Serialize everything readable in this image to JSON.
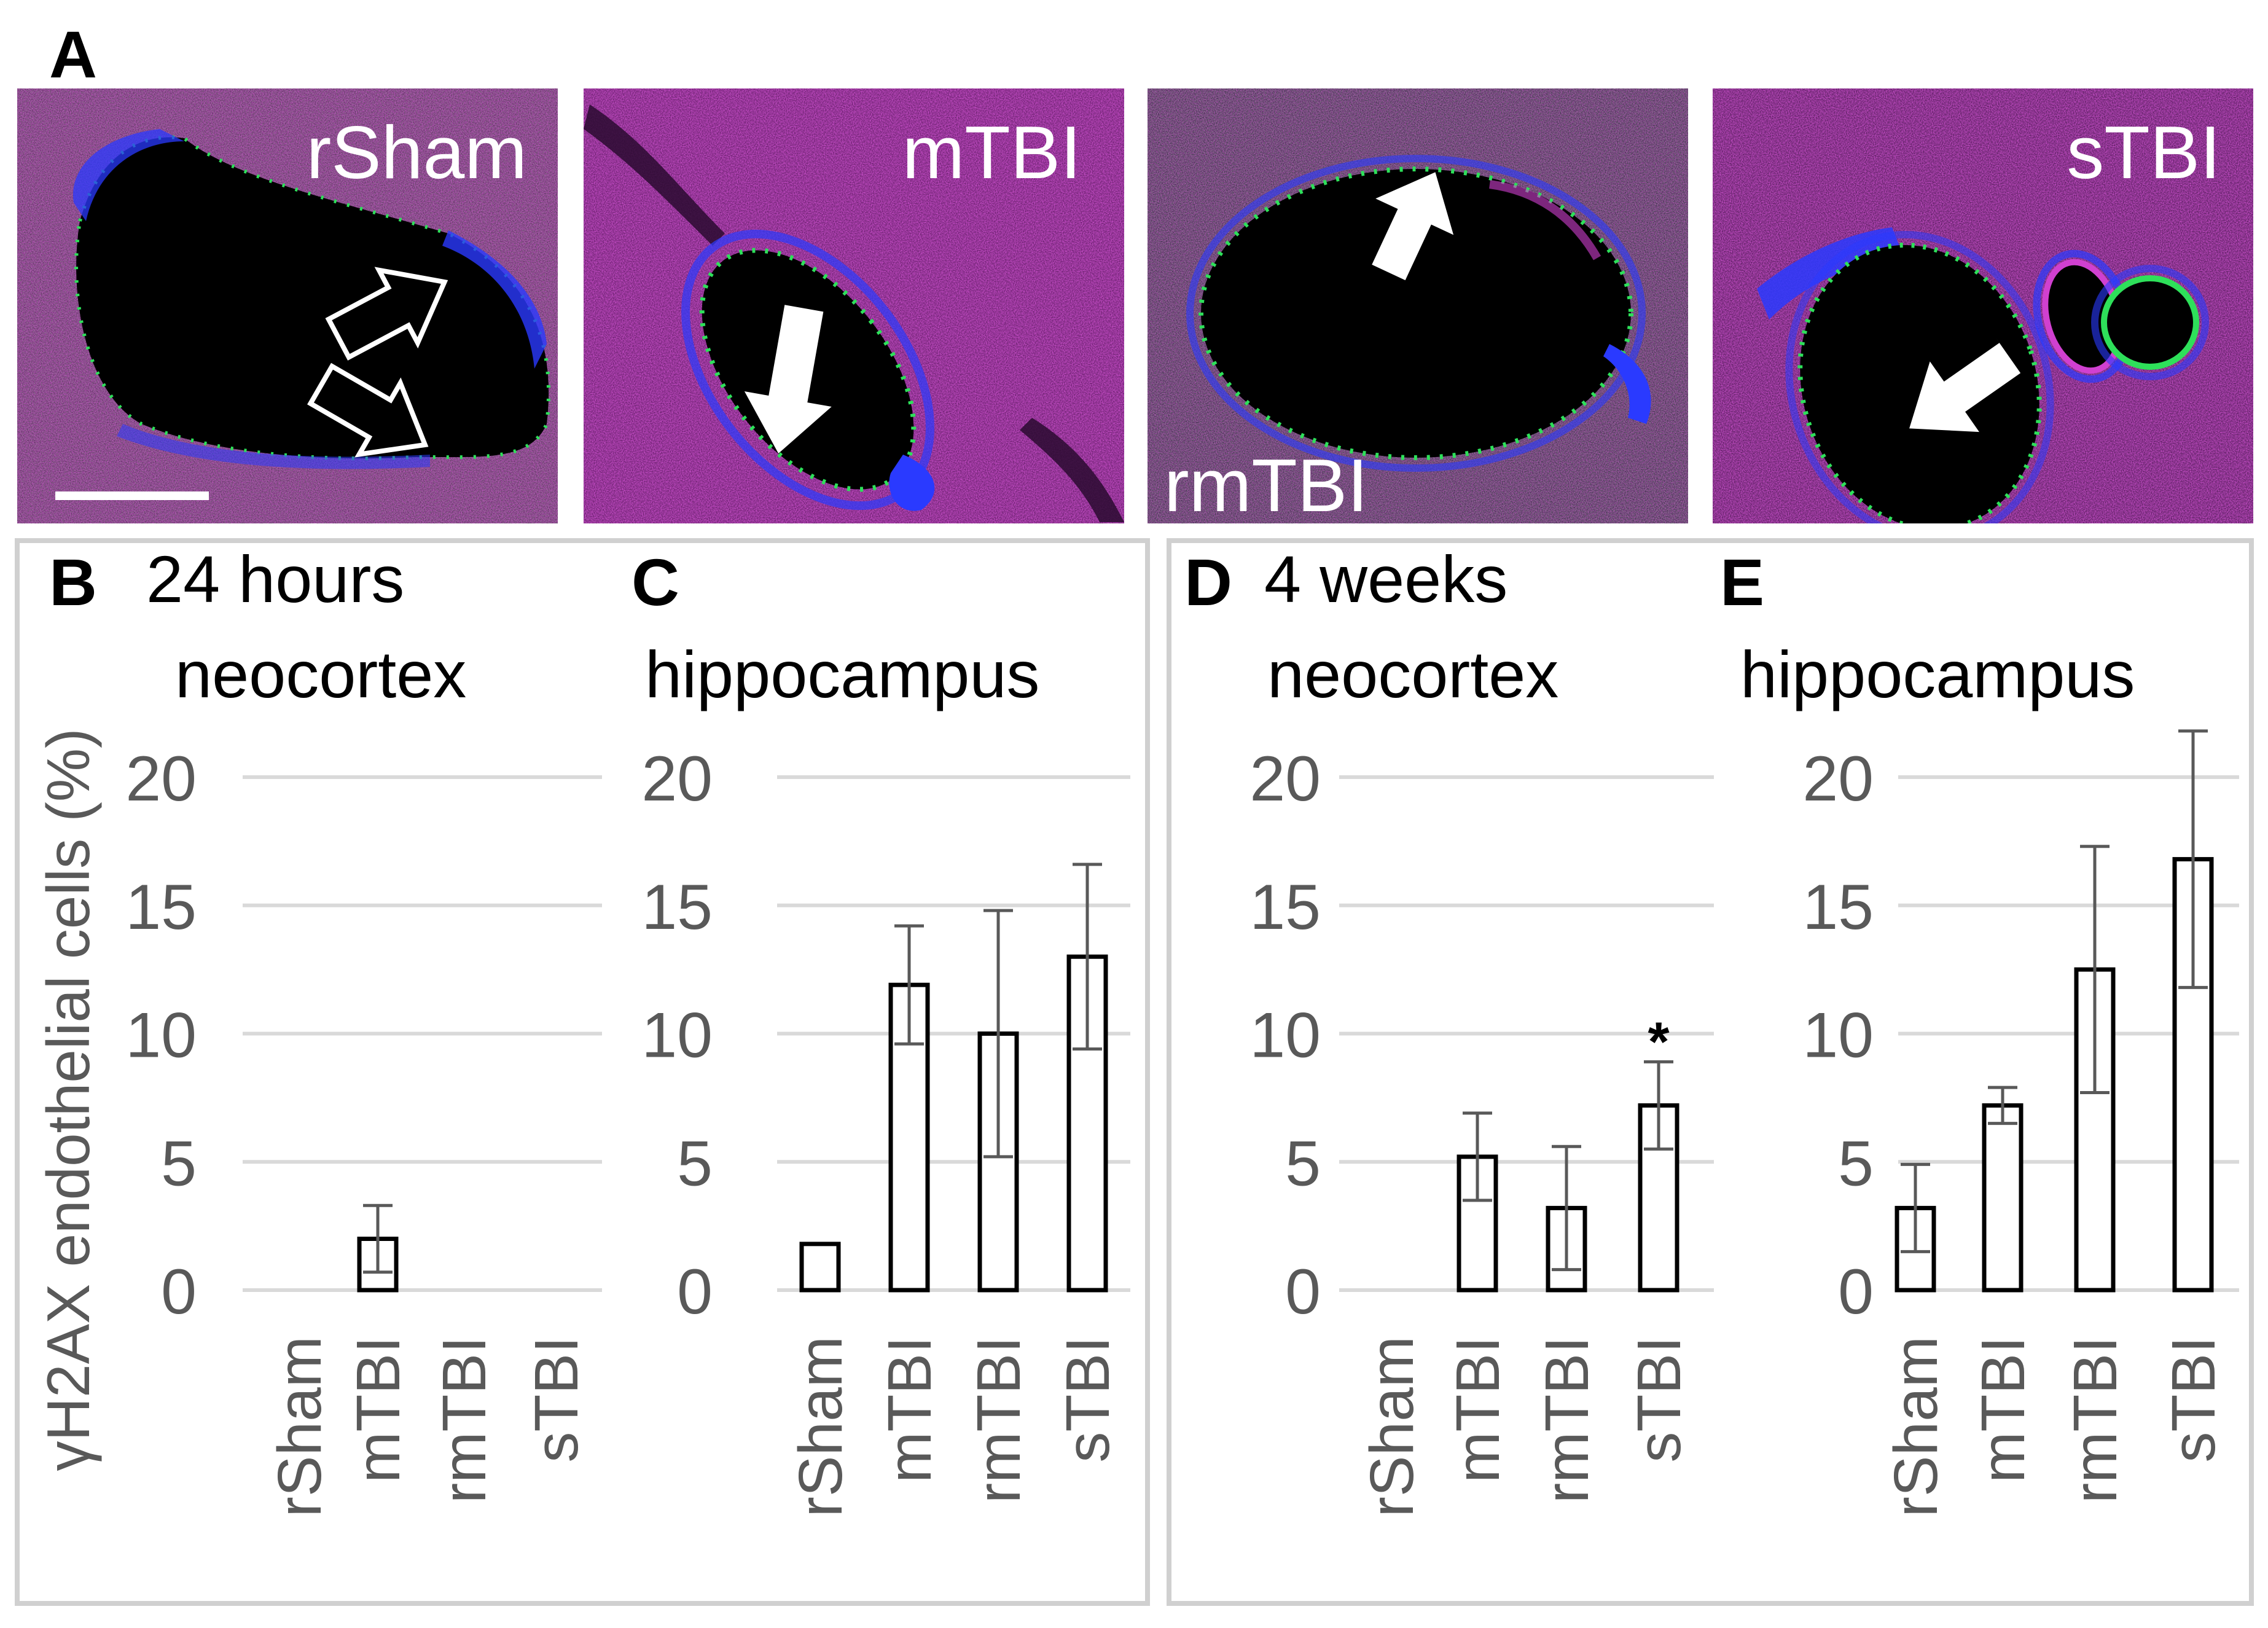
{
  "figure_label": "A",
  "micrographs": [
    {
      "label": "rSham"
    },
    {
      "label": "mTBI"
    },
    {
      "label": "rmTBI"
    },
    {
      "label": "sTBI"
    }
  ],
  "group_titles": {
    "left": "24 hours",
    "right": "4 weeks"
  },
  "y_axis_label": "γH2AX endothelial cells (%)",
  "colors": {
    "grid": "#d9d9d9",
    "tick_text": "#595959",
    "bar_edge": "#000000",
    "error_bar": "#595959",
    "box_border": "#d0d0d0",
    "magenta": "#b41eb4",
    "blue": "#1a2aff",
    "green": "#2ee05a"
  },
  "chart_data": [
    {
      "type": "bar",
      "panel": "B",
      "title": "neocortex",
      "categories": [
        "rSham",
        "mTBI",
        "rmTBI",
        "sTBI"
      ],
      "values": [
        0,
        2.0,
        0,
        0
      ],
      "error": [
        0,
        1.3,
        0,
        0
      ],
      "ylim": [
        0,
        20
      ],
      "yticks": [
        "0",
        "5",
        "10",
        "15",
        "20"
      ],
      "annotations": []
    },
    {
      "type": "bar",
      "panel": "C",
      "title": "hippocampus",
      "categories": [
        "rSham",
        "mTBI",
        "rmTBI",
        "sTBI"
      ],
      "values": [
        1.8,
        11.9,
        10.0,
        13.0
      ],
      "error": [
        0,
        2.3,
        4.8,
        3.6
      ],
      "ylim": [
        0,
        20
      ],
      "yticks": [
        "0",
        "5",
        "10",
        "15",
        "20"
      ],
      "annotations": []
    },
    {
      "type": "bar",
      "panel": "D",
      "title": "neocortex",
      "categories": [
        "rSham",
        "mTBI",
        "rmTBI",
        "sTBI"
      ],
      "values": [
        0,
        5.2,
        3.2,
        7.2
      ],
      "error": [
        0,
        1.7,
        2.4,
        1.7
      ],
      "ylim": [
        0,
        20
      ],
      "yticks": [
        "0",
        "5",
        "10",
        "15",
        "20"
      ],
      "annotations": [
        {
          "category": "sTBI",
          "text": "*"
        }
      ]
    },
    {
      "type": "bar",
      "panel": "E",
      "title": "hippocampus",
      "categories": [
        "rSham",
        "mTBI",
        "rmTBI",
        "sTBI"
      ],
      "values": [
        3.2,
        7.2,
        12.5,
        16.8
      ],
      "error": [
        1.7,
        0.7,
        4.8,
        5.0
      ],
      "ylim": [
        0,
        20
      ],
      "yticks": [
        "0",
        "5",
        "10",
        "15",
        "20"
      ],
      "annotations": []
    }
  ]
}
